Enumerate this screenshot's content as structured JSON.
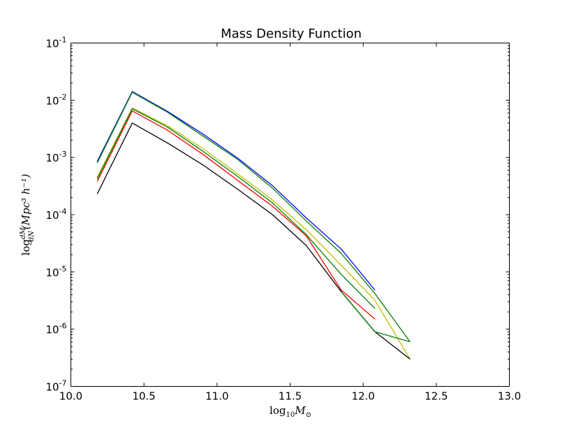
{
  "chart_data": {
    "type": "line",
    "title": "Mass Density Function",
    "xlabel": {
      "base": "log",
      "sub": "10",
      "var": "M",
      "var_sub": "⊙"
    },
    "ylabel": {
      "prefix": "log",
      "num": "dM",
      "den": "dN",
      "unit": "(Mpc³ h⁻¹)"
    },
    "xlim": [
      10.0,
      13.0
    ],
    "ylim_log10": [
      -7,
      -1
    ],
    "y_scale": "log",
    "grid": false,
    "legend": "none",
    "xticks": [
      "10.0",
      "10.5",
      "11.0",
      "11.5",
      "12.0",
      "12.5",
      "13.0"
    ],
    "yticks": [
      {
        "exp": -1,
        "base": "10",
        "sup": "-1"
      },
      {
        "exp": -2,
        "base": "10",
        "sup": "-2"
      },
      {
        "exp": -3,
        "base": "10",
        "sup": "-3"
      },
      {
        "exp": -4,
        "base": "10",
        "sup": "-4"
      },
      {
        "exp": -5,
        "base": "10",
        "sup": "-5"
      },
      {
        "exp": -6,
        "base": "10",
        "sup": "-6"
      },
      {
        "exp": -7,
        "base": "10",
        "sup": "-7"
      }
    ],
    "series": [
      {
        "color": "#0000ff",
        "x": [
          10.18,
          10.42,
          10.66,
          10.9,
          11.14,
          11.38,
          11.61,
          11.85,
          12.08
        ],
        "y": [
          0.00085,
          0.0142,
          0.0064,
          0.0026,
          0.00098,
          0.00032,
          8.8e-05,
          2.5e-05,
          4.8e-06
        ]
      },
      {
        "color": "#008000",
        "x": [
          10.18,
          10.42,
          10.66,
          10.9,
          11.14,
          11.38,
          11.61,
          11.85,
          12.08,
          12.32
        ],
        "y": [
          0.0008,
          0.0138,
          0.0062,
          0.0024,
          0.00093,
          0.00029,
          7.8e-05,
          2.1e-05,
          4.2e-06,
          6e-07
        ]
      },
      {
        "color": "#bfbf00",
        "x": [
          10.18,
          10.42,
          10.66,
          10.9,
          11.14,
          11.38,
          11.61,
          11.85,
          12.08,
          12.32
        ],
        "y": [
          0.00045,
          0.0073,
          0.0036,
          0.00145,
          0.00052,
          0.00018,
          5.5e-05,
          1.3e-05,
          3.2e-06,
          3e-07
        ]
      },
      {
        "color": "#008000",
        "x": [
          10.18,
          10.42,
          10.66,
          10.9,
          11.14,
          11.38,
          11.61,
          11.85,
          12.08
        ],
        "y": [
          0.00042,
          0.0071,
          0.0034,
          0.0013,
          0.00047,
          0.00016,
          4.5e-05,
          9e-06,
          2.3e-06
        ]
      },
      {
        "color": "#ff0000",
        "x": [
          10.18,
          10.42,
          10.66,
          10.9,
          11.14,
          11.38,
          11.61,
          11.85,
          12.08
        ],
        "y": [
          0.00038,
          0.0065,
          0.003,
          0.00115,
          0.0004,
          0.00014,
          4.3e-05,
          4.8e-06,
          1.5e-06
        ]
      },
      {
        "color": "#000000",
        "x": [
          10.18,
          10.42,
          10.66,
          10.9,
          11.14,
          11.38,
          11.61,
          11.85,
          12.08,
          12.32
        ],
        "y": [
          0.00023,
          0.004,
          0.0018,
          0.00075,
          0.00028,
          0.0001,
          2.9e-05,
          4.5e-06,
          9e-07,
          3e-07
        ]
      },
      {
        "color": "#008000",
        "x": [
          11.85,
          12.08,
          12.32
        ],
        "y": [
          4.5e-06,
          9e-07,
          6e-07
        ]
      }
    ]
  }
}
